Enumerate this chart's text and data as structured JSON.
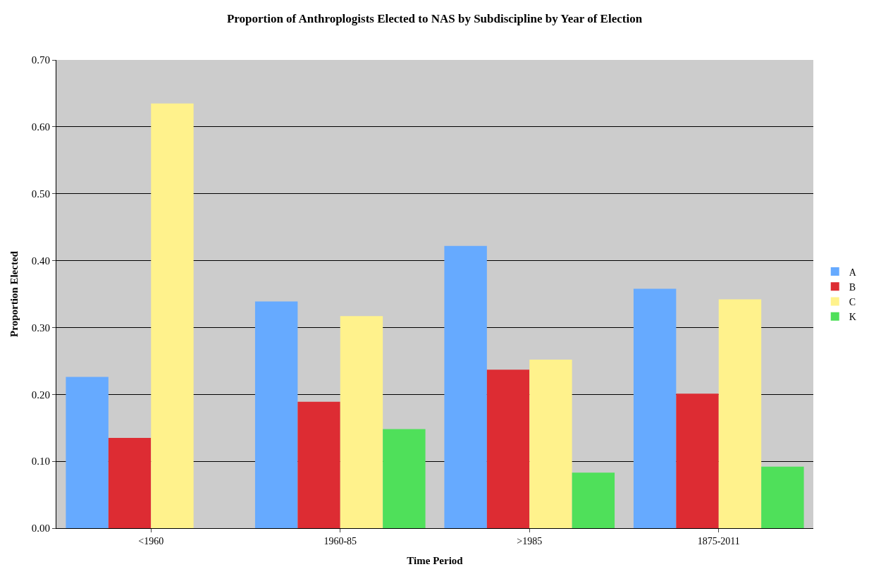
{
  "chart_data": {
    "type": "bar",
    "title": "Proportion of Anthroplogists Elected to NAS by Subdiscipline by Year of Election",
    "xlabel": "Time Period",
    "ylabel": "Proportion Elected",
    "categories": [
      "<1960",
      "1960-85",
      ">1985",
      "1875-2011"
    ],
    "series": [
      {
        "name": "A",
        "color": "#66aaff",
        "values": [
          0.226,
          0.339,
          0.422,
          0.358
        ]
      },
      {
        "name": "B",
        "color": "#dd2c33",
        "values": [
          0.135,
          0.189,
          0.237,
          0.201
        ]
      },
      {
        "name": "C",
        "color": "#fff28c",
        "values": [
          0.635,
          0.317,
          0.252,
          0.342
        ]
      },
      {
        "name": "K",
        "color": "#4fe05a",
        "values": [
          0,
          0.148,
          0.083,
          0.092
        ]
      }
    ],
    "ylim": [
      0,
      0.7
    ],
    "yticks": [
      {
        "value": 0,
        "label": "0.00"
      },
      {
        "value": 0.1,
        "label": "0.10"
      },
      {
        "value": 0.2,
        "label": "0.20"
      },
      {
        "value": 0.3,
        "label": "0.30"
      },
      {
        "value": 0.4,
        "label": "0.40"
      },
      {
        "value": 0.5,
        "label": "0.50"
      },
      {
        "value": 0.6,
        "label": "0.60"
      },
      {
        "value": 0.7,
        "label": "0.70"
      }
    ],
    "grid": "y",
    "legend": "right"
  }
}
